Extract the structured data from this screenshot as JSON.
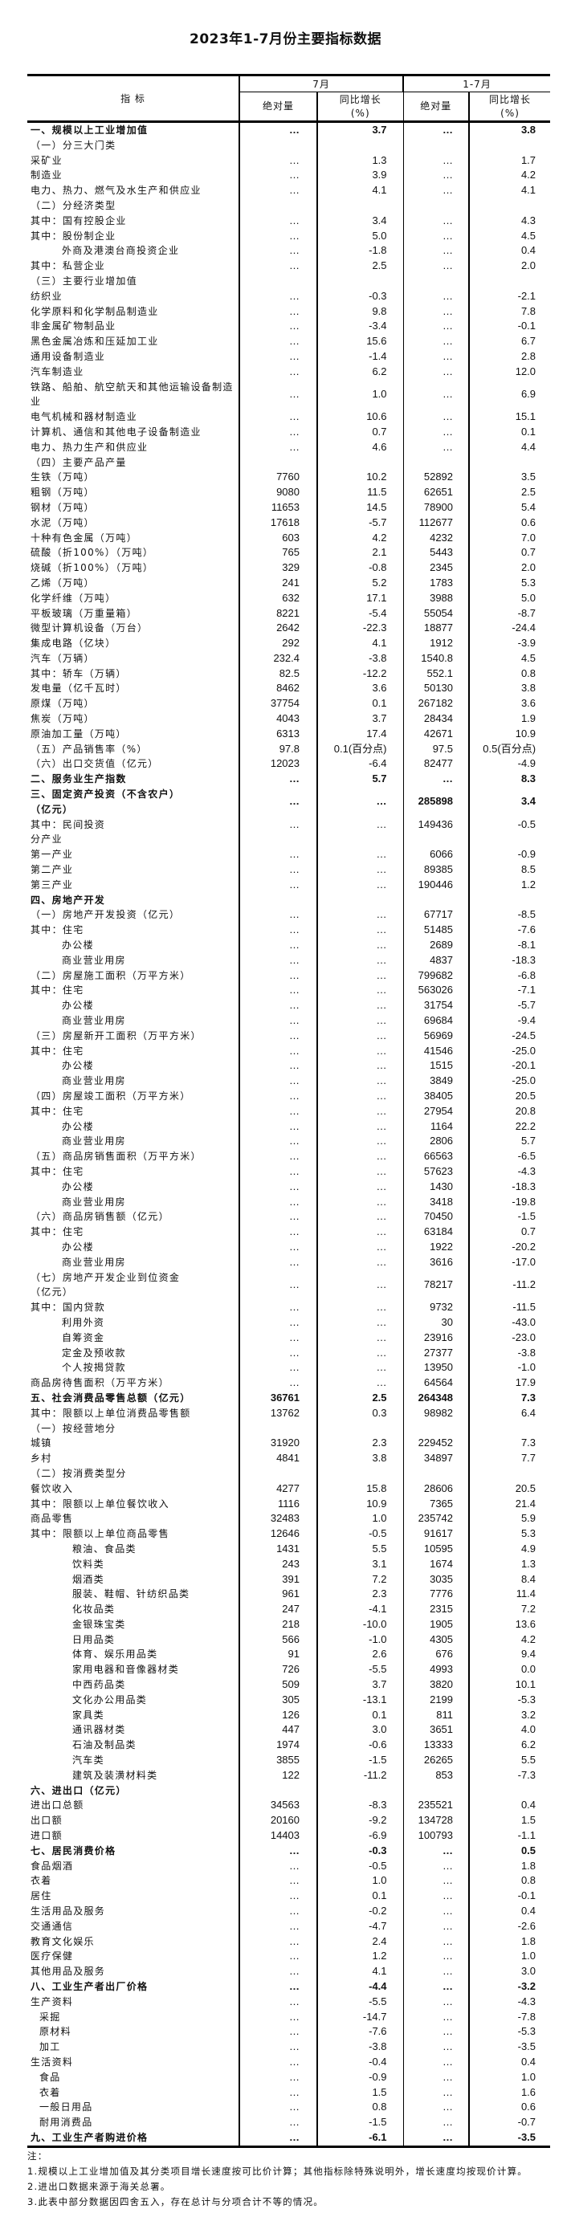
{
  "title": "2023年1-7月份主要指标数据",
  "header": {
    "indicator": "指 标",
    "period_month": "7月",
    "period_cumulative": "1-7月",
    "absolute": "绝对量",
    "yoy": "同比增长\n(%)"
  },
  "rows": [
    {
      "label": "一、规模以上工业增加值",
      "m_abs": "…",
      "m_yoy": "3.7",
      "c_abs": "…",
      "c_yoy": "3.8",
      "level": 0,
      "section": true
    },
    {
      "label": "（一）分三大门类",
      "m_abs": "",
      "m_yoy": "",
      "c_abs": "",
      "c_yoy": "",
      "level": 0
    },
    {
      "label": "采矿业",
      "m_abs": "…",
      "m_yoy": "1.3",
      "c_abs": "…",
      "c_yoy": "1.7",
      "level": 0
    },
    {
      "label": "制造业",
      "m_abs": "…",
      "m_yoy": "3.9",
      "c_abs": "…",
      "c_yoy": "4.2",
      "level": 0
    },
    {
      "label": "电力、热力、燃气及水生产和供应业",
      "m_abs": "…",
      "m_yoy": "4.1",
      "c_abs": "…",
      "c_yoy": "4.1",
      "level": 0
    },
    {
      "label": "（二）分经济类型",
      "m_abs": "",
      "m_yoy": "",
      "c_abs": "",
      "c_yoy": "",
      "level": 0
    },
    {
      "label": "其中：国有控股企业",
      "m_abs": "…",
      "m_yoy": "3.4",
      "c_abs": "…",
      "c_yoy": "4.3",
      "level": 0
    },
    {
      "label": "其中：股份制企业",
      "m_abs": "…",
      "m_yoy": "5.0",
      "c_abs": "…",
      "c_yoy": "4.5",
      "level": 0
    },
    {
      "label": "外商及港澳台商投资企业",
      "m_abs": "…",
      "m_yoy": "-1.8",
      "c_abs": "…",
      "c_yoy": "0.4",
      "level": 1
    },
    {
      "label": "其中：私营企业",
      "m_abs": "…",
      "m_yoy": "2.5",
      "c_abs": "…",
      "c_yoy": "2.0",
      "level": 0
    },
    {
      "label": "（三）主要行业增加值",
      "m_abs": "",
      "m_yoy": "",
      "c_abs": "",
      "c_yoy": "",
      "level": 0
    },
    {
      "label": "纺织业",
      "m_abs": "…",
      "m_yoy": "-0.3",
      "c_abs": "…",
      "c_yoy": "-2.1",
      "level": 0
    },
    {
      "label": "化学原料和化学制品制造业",
      "m_abs": "…",
      "m_yoy": "9.8",
      "c_abs": "…",
      "c_yoy": "7.8",
      "level": 0
    },
    {
      "label": "非金属矿物制品业",
      "m_abs": "…",
      "m_yoy": "-3.4",
      "c_abs": "…",
      "c_yoy": "-0.1",
      "level": 0
    },
    {
      "label": "黑色金属冶炼和压延加工业",
      "m_abs": "…",
      "m_yoy": "15.6",
      "c_abs": "…",
      "c_yoy": "6.7",
      "level": 0
    },
    {
      "label": "通用设备制造业",
      "m_abs": "…",
      "m_yoy": "-1.4",
      "c_abs": "…",
      "c_yoy": "2.8",
      "level": 0
    },
    {
      "label": "汽车制造业",
      "m_abs": "…",
      "m_yoy": "6.2",
      "c_abs": "…",
      "c_yoy": "12.0",
      "level": 0
    },
    {
      "label": "铁路、船舶、航空航天和其他运输设备制造\n业",
      "m_abs": "…",
      "m_yoy": "1.0",
      "c_abs": "…",
      "c_yoy": "6.9",
      "level": 0
    },
    {
      "label": "电气机械和器材制造业",
      "m_abs": "…",
      "m_yoy": "10.6",
      "c_abs": "…",
      "c_yoy": "15.1",
      "level": 0
    },
    {
      "label": "计算机、通信和其他电子设备制造业",
      "m_abs": "…",
      "m_yoy": "0.7",
      "c_abs": "…",
      "c_yoy": "0.1",
      "level": 0
    },
    {
      "label": "电力、热力生产和供应业",
      "m_abs": "…",
      "m_yoy": "4.6",
      "c_abs": "…",
      "c_yoy": "4.4",
      "level": 0
    },
    {
      "label": "（四）主要产品产量",
      "m_abs": "",
      "m_yoy": "",
      "c_abs": "",
      "c_yoy": "",
      "level": 0
    },
    {
      "label": "生铁（万吨）",
      "m_abs": "7760",
      "m_yoy": "10.2",
      "c_abs": "52892",
      "c_yoy": "3.5",
      "level": 0
    },
    {
      "label": "粗钢（万吨）",
      "m_abs": "9080",
      "m_yoy": "11.5",
      "c_abs": "62651",
      "c_yoy": "2.5",
      "level": 0
    },
    {
      "label": "钢材（万吨）",
      "m_abs": "11653",
      "m_yoy": "14.5",
      "c_abs": "78900",
      "c_yoy": "5.4",
      "level": 0
    },
    {
      "label": "水泥（万吨）",
      "m_abs": "17618",
      "m_yoy": "-5.7",
      "c_abs": "112677",
      "c_yoy": "0.6",
      "level": 0
    },
    {
      "label": "十种有色金属（万吨）",
      "m_abs": "603",
      "m_yoy": "4.2",
      "c_abs": "4232",
      "c_yoy": "7.0",
      "level": 0
    },
    {
      "label": "硫酸（折100%）（万吨）",
      "m_abs": "765",
      "m_yoy": "2.1",
      "c_abs": "5443",
      "c_yoy": "0.7",
      "level": 0
    },
    {
      "label": "烧碱（折100%）（万吨）",
      "m_abs": "329",
      "m_yoy": "-0.8",
      "c_abs": "2345",
      "c_yoy": "2.0",
      "level": 0
    },
    {
      "label": "乙烯（万吨）",
      "m_abs": "241",
      "m_yoy": "5.2",
      "c_abs": "1783",
      "c_yoy": "5.3",
      "level": 0
    },
    {
      "label": "化学纤维（万吨）",
      "m_abs": "632",
      "m_yoy": "17.1",
      "c_abs": "3988",
      "c_yoy": "5.0",
      "level": 0
    },
    {
      "label": "平板玻璃（万重量箱）",
      "m_abs": "8221",
      "m_yoy": "-5.4",
      "c_abs": "55054",
      "c_yoy": "-8.7",
      "level": 0
    },
    {
      "label": "微型计算机设备（万台）",
      "m_abs": "2642",
      "m_yoy": "-22.3",
      "c_abs": "18877",
      "c_yoy": "-24.4",
      "level": 0
    },
    {
      "label": "集成电路（亿块）",
      "m_abs": "292",
      "m_yoy": "4.1",
      "c_abs": "1912",
      "c_yoy": "-3.9",
      "level": 0
    },
    {
      "label": "汽车（万辆）",
      "m_abs": "232.4",
      "m_yoy": "-3.8",
      "c_abs": "1540.8",
      "c_yoy": "4.5",
      "level": 0
    },
    {
      "label": "其中：轿车（万辆）",
      "m_abs": "82.5",
      "m_yoy": "-12.2",
      "c_abs": "552.1",
      "c_yoy": "0.8",
      "level": 0
    },
    {
      "label": "发电量（亿千瓦时）",
      "m_abs": "8462",
      "m_yoy": "3.6",
      "c_abs": "50130",
      "c_yoy": "3.8",
      "level": 0
    },
    {
      "label": "原煤（万吨）",
      "m_abs": "37754",
      "m_yoy": "0.1",
      "c_abs": "267182",
      "c_yoy": "3.6",
      "level": 0
    },
    {
      "label": "焦炭（万吨）",
      "m_abs": "4043",
      "m_yoy": "3.7",
      "c_abs": "28434",
      "c_yoy": "1.9",
      "level": 0
    },
    {
      "label": "原油加工量（万吨）",
      "m_abs": "6313",
      "m_yoy": "17.4",
      "c_abs": "42671",
      "c_yoy": "10.9",
      "level": 0
    },
    {
      "label": "（五）产品销售率（%）",
      "m_abs": "97.8",
      "m_yoy": "0.1(百分点)",
      "c_abs": "97.5",
      "c_yoy": "0.5(百分点)",
      "level": 0
    },
    {
      "label": "（六）出口交货值（亿元）",
      "m_abs": "12023",
      "m_yoy": "-6.4",
      "c_abs": "82477",
      "c_yoy": "-4.9",
      "level": 0
    },
    {
      "label": "二、服务业生产指数",
      "m_abs": "…",
      "m_yoy": "5.7",
      "c_abs": "…",
      "c_yoy": "8.3",
      "level": 0,
      "section": true
    },
    {
      "label": "三、固定资产投资（不含农户）\n（亿元）",
      "m_abs": "…",
      "m_yoy": "…",
      "c_abs": "285898",
      "c_yoy": "3.4",
      "level": 0,
      "section": true
    },
    {
      "label": "其中：民间投资",
      "m_abs": "…",
      "m_yoy": "…",
      "c_abs": "149436",
      "c_yoy": "-0.5",
      "level": 0
    },
    {
      "label": "分产业",
      "m_abs": "",
      "m_yoy": "",
      "c_abs": "",
      "c_yoy": "",
      "level": 0
    },
    {
      "label": "第一产业",
      "m_abs": "…",
      "m_yoy": "…",
      "c_abs": "6066",
      "c_yoy": "-0.9",
      "level": 0
    },
    {
      "label": "第二产业",
      "m_abs": "…",
      "m_yoy": "…",
      "c_abs": "89385",
      "c_yoy": "8.5",
      "level": 0
    },
    {
      "label": "第三产业",
      "m_abs": "…",
      "m_yoy": "…",
      "c_abs": "190446",
      "c_yoy": "1.2",
      "level": 0
    },
    {
      "label": "四、房地产开发",
      "m_abs": "",
      "m_yoy": "",
      "c_abs": "",
      "c_yoy": "",
      "level": 0,
      "section": true
    },
    {
      "label": "（一）房地产开发投资（亿元）",
      "m_abs": "…",
      "m_yoy": "…",
      "c_abs": "67717",
      "c_yoy": "-8.5",
      "level": 0
    },
    {
      "label": "其中：住宅",
      "m_abs": "…",
      "m_yoy": "…",
      "c_abs": "51485",
      "c_yoy": "-7.6",
      "level": 0
    },
    {
      "label": "办公楼",
      "m_abs": "…",
      "m_yoy": "…",
      "c_abs": "2689",
      "c_yoy": "-8.1",
      "level": 1
    },
    {
      "label": "商业营业用房",
      "m_abs": "…",
      "m_yoy": "…",
      "c_abs": "4837",
      "c_yoy": "-18.3",
      "level": 1
    },
    {
      "label": "（二）房屋施工面积（万平方米）",
      "m_abs": "…",
      "m_yoy": "…",
      "c_abs": "799682",
      "c_yoy": "-6.8",
      "level": 0
    },
    {
      "label": "其中：住宅",
      "m_abs": "…",
      "m_yoy": "…",
      "c_abs": "563026",
      "c_yoy": "-7.1",
      "level": 0
    },
    {
      "label": "办公楼",
      "m_abs": "…",
      "m_yoy": "…",
      "c_abs": "31754",
      "c_yoy": "-5.7",
      "level": 1
    },
    {
      "label": "商业营业用房",
      "m_abs": "…",
      "m_yoy": "…",
      "c_abs": "69684",
      "c_yoy": "-9.4",
      "level": 1
    },
    {
      "label": "（三）房屋新开工面积（万平方米）",
      "m_abs": "…",
      "m_yoy": "…",
      "c_abs": "56969",
      "c_yoy": "-24.5",
      "level": 0
    },
    {
      "label": "其中：住宅",
      "m_abs": "…",
      "m_yoy": "…",
      "c_abs": "41546",
      "c_yoy": "-25.0",
      "level": 0
    },
    {
      "label": "办公楼",
      "m_abs": "…",
      "m_yoy": "…",
      "c_abs": "1515",
      "c_yoy": "-20.1",
      "level": 1
    },
    {
      "label": "商业营业用房",
      "m_abs": "…",
      "m_yoy": "…",
      "c_abs": "3849",
      "c_yoy": "-25.0",
      "level": 1
    },
    {
      "label": "（四）房屋竣工面积（万平方米）",
      "m_abs": "…",
      "m_yoy": "…",
      "c_abs": "38405",
      "c_yoy": "20.5",
      "level": 0
    },
    {
      "label": "其中：住宅",
      "m_abs": "…",
      "m_yoy": "…",
      "c_abs": "27954",
      "c_yoy": "20.8",
      "level": 0
    },
    {
      "label": "办公楼",
      "m_abs": "…",
      "m_yoy": "…",
      "c_abs": "1164",
      "c_yoy": "22.2",
      "level": 1
    },
    {
      "label": "商业营业用房",
      "m_abs": "…",
      "m_yoy": "…",
      "c_abs": "2806",
      "c_yoy": "5.7",
      "level": 1
    },
    {
      "label": "（五）商品房销售面积（万平方米）",
      "m_abs": "…",
      "m_yoy": "…",
      "c_abs": "66563",
      "c_yoy": "-6.5",
      "level": 0
    },
    {
      "label": "其中：住宅",
      "m_abs": "…",
      "m_yoy": "…",
      "c_abs": "57623",
      "c_yoy": "-4.3",
      "level": 0
    },
    {
      "label": "办公楼",
      "m_abs": "…",
      "m_yoy": "…",
      "c_abs": "1430",
      "c_yoy": "-18.3",
      "level": 1
    },
    {
      "label": "商业营业用房",
      "m_abs": "…",
      "m_yoy": "…",
      "c_abs": "3418",
      "c_yoy": "-19.8",
      "level": 1
    },
    {
      "label": "（六）商品房销售额（亿元）",
      "m_abs": "…",
      "m_yoy": "…",
      "c_abs": "70450",
      "c_yoy": "-1.5",
      "level": 0
    },
    {
      "label": "其中：住宅",
      "m_abs": "…",
      "m_yoy": "…",
      "c_abs": "63184",
      "c_yoy": "0.7",
      "level": 0
    },
    {
      "label": "办公楼",
      "m_abs": "…",
      "m_yoy": "…",
      "c_abs": "1922",
      "c_yoy": "-20.2",
      "level": 1
    },
    {
      "label": "商业营业用房",
      "m_abs": "…",
      "m_yoy": "…",
      "c_abs": "3616",
      "c_yoy": "-17.0",
      "level": 1
    },
    {
      "label": "（七）房地产开发企业到位资金\n（亿元）",
      "m_abs": "…",
      "m_yoy": "…",
      "c_abs": "78217",
      "c_yoy": "-11.2",
      "level": 0
    },
    {
      "label": "其中：国内贷款",
      "m_abs": "…",
      "m_yoy": "…",
      "c_abs": "9732",
      "c_yoy": "-11.5",
      "level": 0
    },
    {
      "label": "利用外资",
      "m_abs": "…",
      "m_yoy": "…",
      "c_abs": "30",
      "c_yoy": "-43.0",
      "level": 1
    },
    {
      "label": "自筹资金",
      "m_abs": "…",
      "m_yoy": "…",
      "c_abs": "23916",
      "c_yoy": "-23.0",
      "level": 1
    },
    {
      "label": "定金及预收款",
      "m_abs": "…",
      "m_yoy": "…",
      "c_abs": "27377",
      "c_yoy": "-3.8",
      "level": 1
    },
    {
      "label": "个人按揭贷款",
      "m_abs": "…",
      "m_yoy": "…",
      "c_abs": "13950",
      "c_yoy": "-1.0",
      "level": 1
    },
    {
      "label": "商品房待售面积（万平方米）",
      "m_abs": "…",
      "m_yoy": "…",
      "c_abs": "64564",
      "c_yoy": "17.9",
      "level": 0
    },
    {
      "label": "五、社会消费品零售总额（亿元）",
      "m_abs": "36761",
      "m_yoy": "2.5",
      "c_abs": "264348",
      "c_yoy": "7.3",
      "level": 0,
      "section": true
    },
    {
      "label": "其中：限额以上单位消费品零售额",
      "m_abs": "13762",
      "m_yoy": "0.3",
      "c_abs": "98982",
      "c_yoy": "6.4",
      "level": 0
    },
    {
      "label": "（一）按经营地分",
      "m_abs": "",
      "m_yoy": "",
      "c_abs": "",
      "c_yoy": "",
      "level": 0
    },
    {
      "label": "城镇",
      "m_abs": "31920",
      "m_yoy": "2.3",
      "c_abs": "229452",
      "c_yoy": "7.3",
      "level": 0
    },
    {
      "label": "乡村",
      "m_abs": "4841",
      "m_yoy": "3.8",
      "c_abs": "34897",
      "c_yoy": "7.7",
      "level": 0
    },
    {
      "label": "（二）按消费类型分",
      "m_abs": "",
      "m_yoy": "",
      "c_abs": "",
      "c_yoy": "",
      "level": 0
    },
    {
      "label": "餐饮收入",
      "m_abs": "4277",
      "m_yoy": "15.8",
      "c_abs": "28606",
      "c_yoy": "20.5",
      "level": 0
    },
    {
      "label": "其中：限额以上单位餐饮收入",
      "m_abs": "1116",
      "m_yoy": "10.9",
      "c_abs": "7365",
      "c_yoy": "21.4",
      "level": 0
    },
    {
      "label": "商品零售",
      "m_abs": "32483",
      "m_yoy": "1.0",
      "c_abs": "235742",
      "c_yoy": "5.9",
      "level": 0
    },
    {
      "label": "其中：限额以上单位商品零售",
      "m_abs": "12646",
      "m_yoy": "-0.5",
      "c_abs": "91617",
      "c_yoy": "5.3",
      "level": 0
    },
    {
      "label": "粮油、食品类",
      "m_abs": "1431",
      "m_yoy": "5.5",
      "c_abs": "10595",
      "c_yoy": "4.9",
      "level": 2
    },
    {
      "label": "饮料类",
      "m_abs": "243",
      "m_yoy": "3.1",
      "c_abs": "1674",
      "c_yoy": "1.3",
      "level": 2
    },
    {
      "label": "烟酒类",
      "m_abs": "391",
      "m_yoy": "7.2",
      "c_abs": "3035",
      "c_yoy": "8.4",
      "level": 2
    },
    {
      "label": "服装、鞋帽、针纺织品类",
      "m_abs": "961",
      "m_yoy": "2.3",
      "c_abs": "7776",
      "c_yoy": "11.4",
      "level": 2
    },
    {
      "label": "化妆品类",
      "m_abs": "247",
      "m_yoy": "-4.1",
      "c_abs": "2315",
      "c_yoy": "7.2",
      "level": 2
    },
    {
      "label": "金银珠宝类",
      "m_abs": "218",
      "m_yoy": "-10.0",
      "c_abs": "1905",
      "c_yoy": "13.6",
      "level": 2
    },
    {
      "label": "日用品类",
      "m_abs": "566",
      "m_yoy": "-1.0",
      "c_abs": "4305",
      "c_yoy": "4.2",
      "level": 2
    },
    {
      "label": "体育、娱乐用品类",
      "m_abs": "91",
      "m_yoy": "2.6",
      "c_abs": "676",
      "c_yoy": "9.4",
      "level": 2
    },
    {
      "label": "家用电器和音像器材类",
      "m_abs": "726",
      "m_yoy": "-5.5",
      "c_abs": "4993",
      "c_yoy": "0.0",
      "level": 2
    },
    {
      "label": "中西药品类",
      "m_abs": "509",
      "m_yoy": "3.7",
      "c_abs": "3820",
      "c_yoy": "10.1",
      "level": 2
    },
    {
      "label": "文化办公用品类",
      "m_abs": "305",
      "m_yoy": "-13.1",
      "c_abs": "2199",
      "c_yoy": "-5.3",
      "level": 2
    },
    {
      "label": "家具类",
      "m_abs": "126",
      "m_yoy": "0.1",
      "c_abs": "811",
      "c_yoy": "3.2",
      "level": 2
    },
    {
      "label": "通讯器材类",
      "m_abs": "447",
      "m_yoy": "3.0",
      "c_abs": "3651",
      "c_yoy": "4.0",
      "level": 2
    },
    {
      "label": "石油及制品类",
      "m_abs": "1974",
      "m_yoy": "-0.6",
      "c_abs": "13333",
      "c_yoy": "6.2",
      "level": 2
    },
    {
      "label": "汽车类",
      "m_abs": "3855",
      "m_yoy": "-1.5",
      "c_abs": "26265",
      "c_yoy": "5.5",
      "level": 2
    },
    {
      "label": "建筑及装潢材料类",
      "m_abs": "122",
      "m_yoy": "-11.2",
      "c_abs": "853",
      "c_yoy": "-7.3",
      "level": 2
    },
    {
      "label": "六、进出口（亿元）",
      "m_abs": "",
      "m_yoy": "",
      "c_abs": "",
      "c_yoy": "",
      "level": 0,
      "section": true
    },
    {
      "label": "进出口总额",
      "m_abs": "34563",
      "m_yoy": "-8.3",
      "c_abs": "235521",
      "c_yoy": "0.4",
      "level": 0
    },
    {
      "label": "出口额",
      "m_abs": "20160",
      "m_yoy": "-9.2",
      "c_abs": "134728",
      "c_yoy": "1.5",
      "level": 0
    },
    {
      "label": "进口额",
      "m_abs": "14403",
      "m_yoy": "-6.9",
      "c_abs": "100793",
      "c_yoy": "-1.1",
      "level": 0
    },
    {
      "label": "七、居民消费价格",
      "m_abs": "…",
      "m_yoy": "-0.3",
      "c_abs": "…",
      "c_yoy": "0.5",
      "level": 0,
      "section": true
    },
    {
      "label": "食品烟酒",
      "m_abs": "…",
      "m_yoy": "-0.5",
      "c_abs": "…",
      "c_yoy": "1.8",
      "level": 0
    },
    {
      "label": "衣着",
      "m_abs": "…",
      "m_yoy": "1.0",
      "c_abs": "…",
      "c_yoy": "0.8",
      "level": 0
    },
    {
      "label": "居住",
      "m_abs": "…",
      "m_yoy": "0.1",
      "c_abs": "…",
      "c_yoy": "-0.1",
      "level": 0
    },
    {
      "label": "生活用品及服务",
      "m_abs": "…",
      "m_yoy": "-0.2",
      "c_abs": "…",
      "c_yoy": "0.4",
      "level": 0
    },
    {
      "label": "交通通信",
      "m_abs": "…",
      "m_yoy": "-4.7",
      "c_abs": "…",
      "c_yoy": "-2.6",
      "level": 0
    },
    {
      "label": "教育文化娱乐",
      "m_abs": "…",
      "m_yoy": "2.4",
      "c_abs": "…",
      "c_yoy": "1.8",
      "level": 0
    },
    {
      "label": "医疗保健",
      "m_abs": "…",
      "m_yoy": "1.2",
      "c_abs": "…",
      "c_yoy": "1.0",
      "level": 0
    },
    {
      "label": "其他用品及服务",
      "m_abs": "…",
      "m_yoy": "4.1",
      "c_abs": "…",
      "c_yoy": "3.0",
      "level": 0
    },
    {
      "label": "八、工业生产者出厂价格",
      "m_abs": "…",
      "m_yoy": "-4.4",
      "c_abs": "…",
      "c_yoy": "-3.2",
      "level": 0,
      "section": true
    },
    {
      "label": "生产资料",
      "m_abs": "…",
      "m_yoy": "-5.5",
      "c_abs": "…",
      "c_yoy": "-4.3",
      "level": 0
    },
    {
      "label": "采掘",
      "m_abs": "…",
      "m_yoy": "-14.7",
      "c_abs": "…",
      "c_yoy": "-7.8",
      "level": 3
    },
    {
      "label": "原材料",
      "m_abs": "…",
      "m_yoy": "-7.6",
      "c_abs": "…",
      "c_yoy": "-5.3",
      "level": 3
    },
    {
      "label": "加工",
      "m_abs": "…",
      "m_yoy": "-3.8",
      "c_abs": "…",
      "c_yoy": "-3.5",
      "level": 3
    },
    {
      "label": "生活资料",
      "m_abs": "…",
      "m_yoy": "-0.4",
      "c_abs": "…",
      "c_yoy": "0.4",
      "level": 0
    },
    {
      "label": "食品",
      "m_abs": "…",
      "m_yoy": "-0.9",
      "c_abs": "…",
      "c_yoy": "1.0",
      "level": 3
    },
    {
      "label": "衣着",
      "m_abs": "…",
      "m_yoy": "1.5",
      "c_abs": "…",
      "c_yoy": "1.6",
      "level": 3
    },
    {
      "label": "一般日用品",
      "m_abs": "…",
      "m_yoy": "0.8",
      "c_abs": "…",
      "c_yoy": "0.6",
      "level": 3
    },
    {
      "label": "耐用消费品",
      "m_abs": "…",
      "m_yoy": "-1.5",
      "c_abs": "…",
      "c_yoy": "-0.7",
      "level": 3
    },
    {
      "label": "九、工业生产者购进价格",
      "m_abs": "…",
      "m_yoy": "-6.1",
      "c_abs": "…",
      "c_yoy": "-3.5",
      "level": 0,
      "section": true
    }
  ],
  "notes": {
    "heading": "注：",
    "items": [
      "1.规模以上工业增加值及其分类项目增长速度按可比价计算；其他指标除特殊说明外，增长速度均按现价计算。",
      "2.进出口数据来源于海关总署。",
      "3.此表中部分数据因四舍五入，存在总计与分项合计不等的情况。"
    ]
  }
}
